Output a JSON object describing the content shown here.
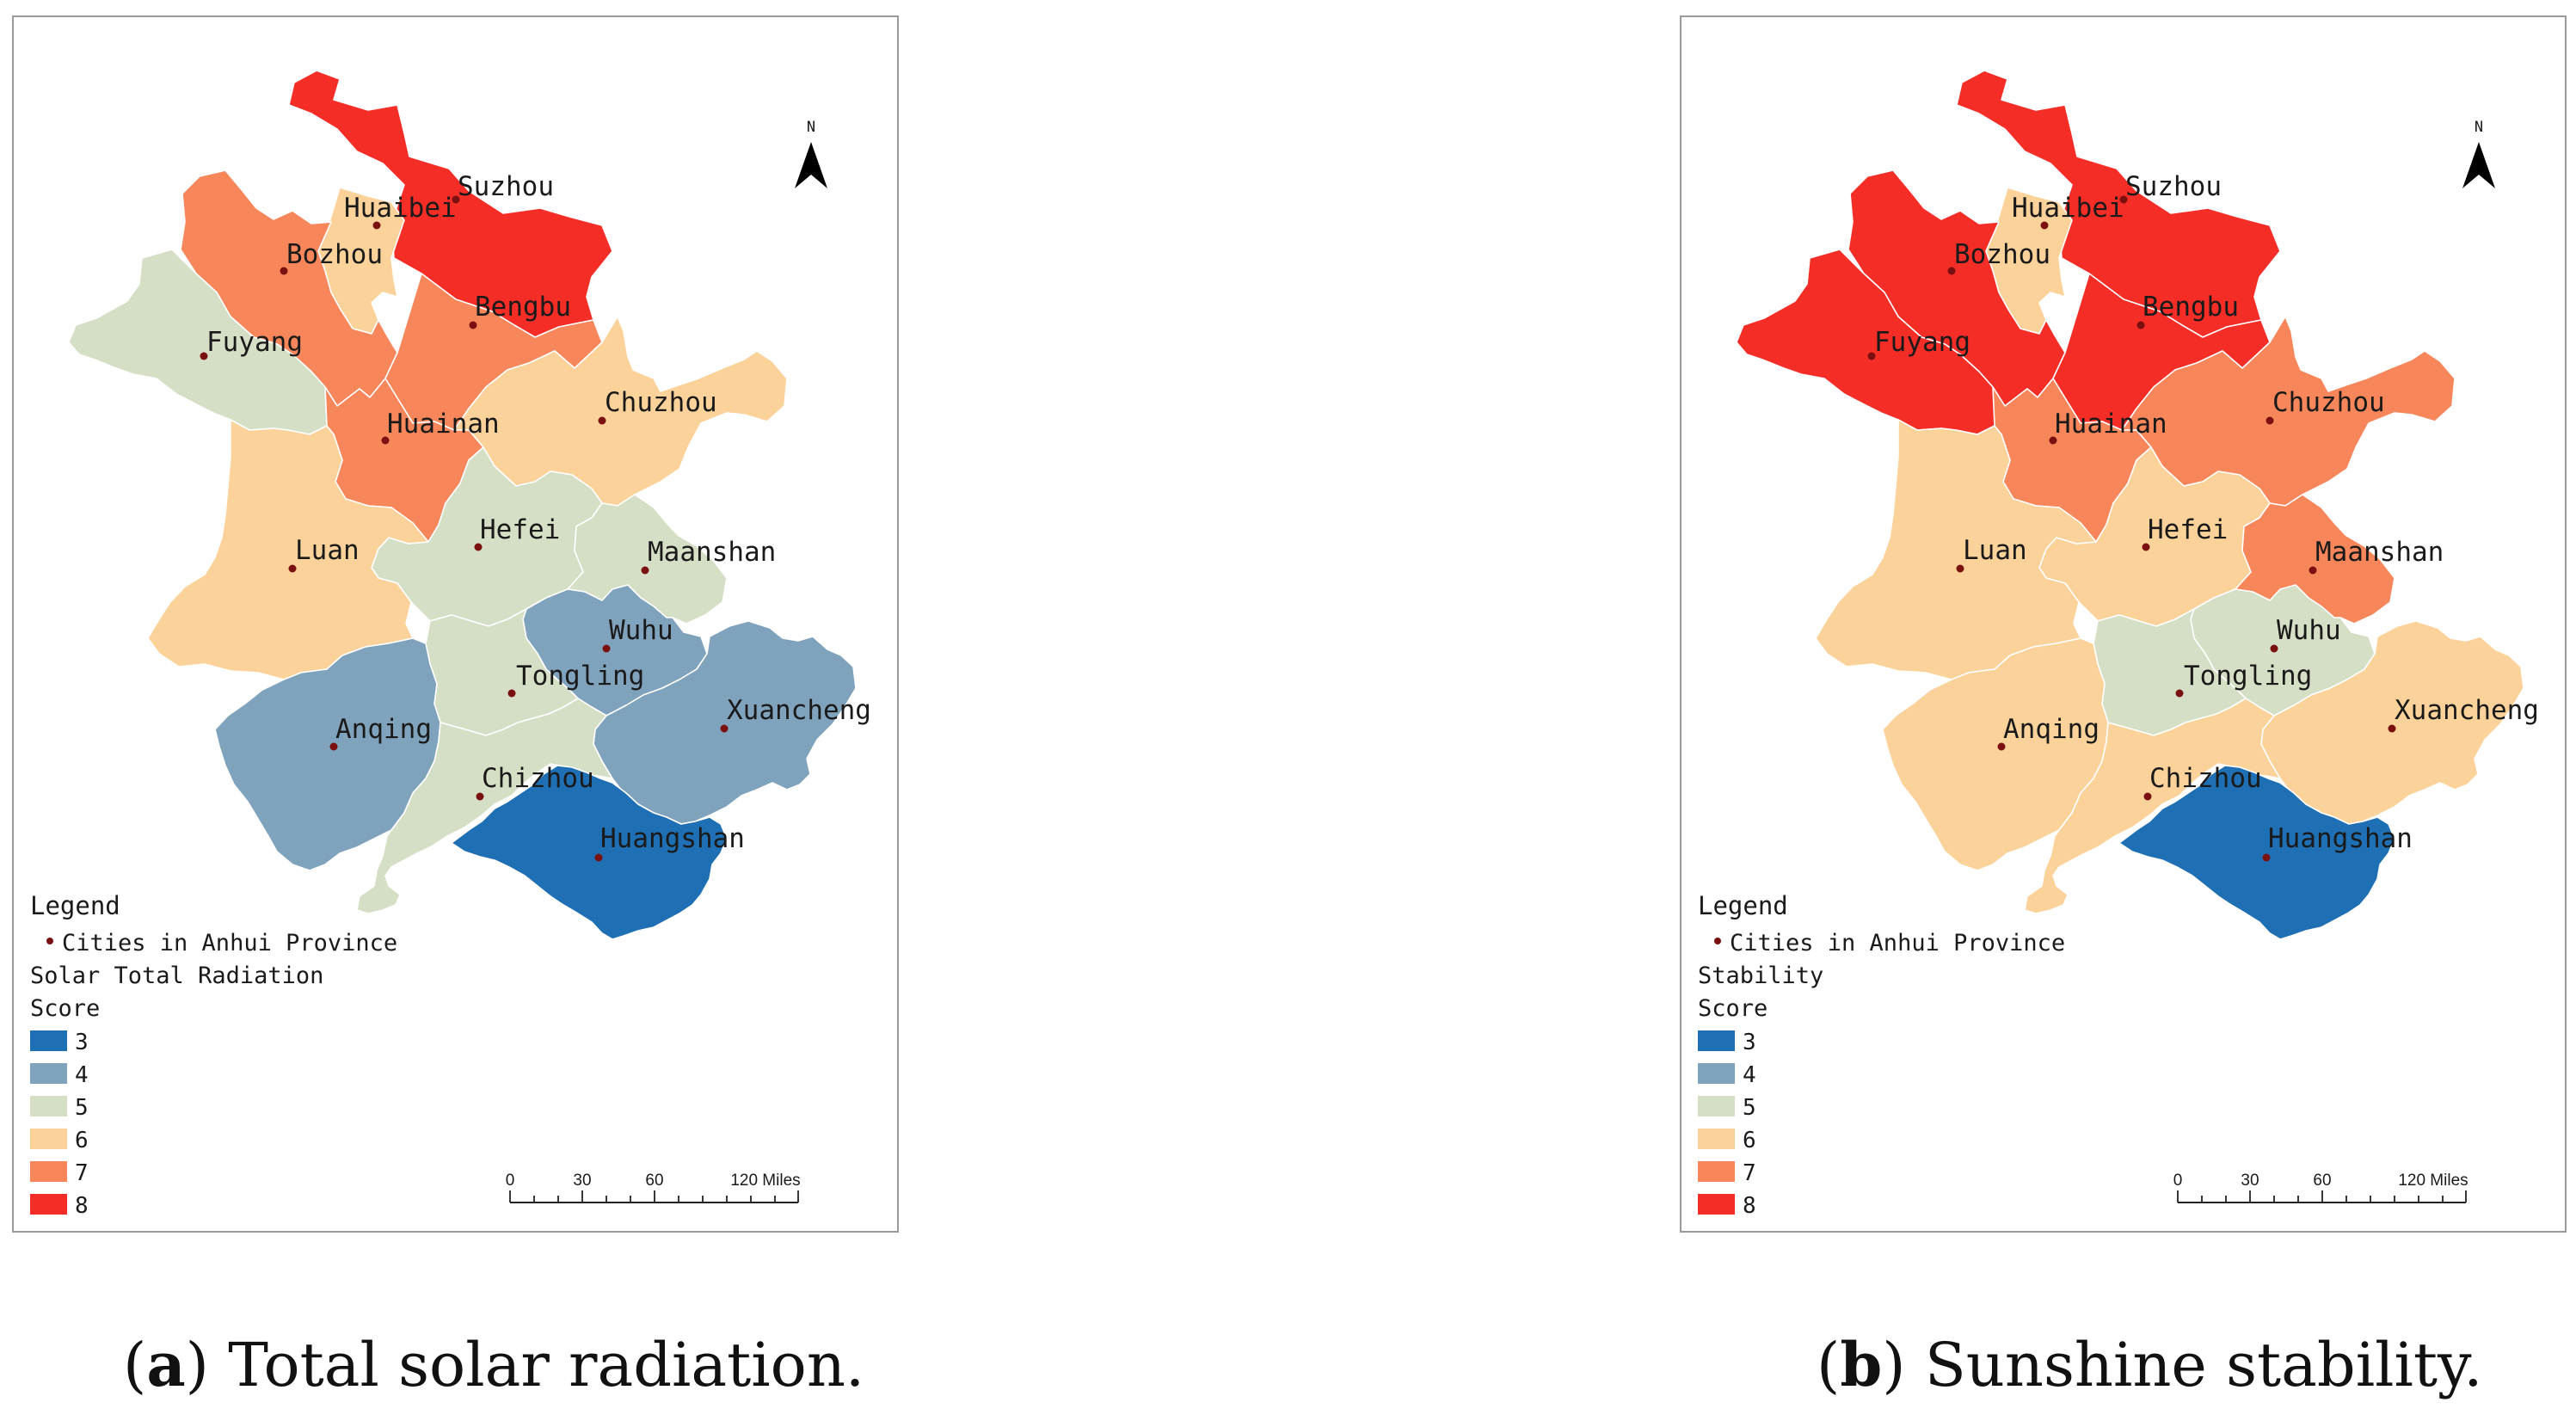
{
  "colors": {
    "3": "#1f6fb4",
    "4": "#7fa2bd",
    "5": "#d5dfc5",
    "6": "#fbd29a",
    "7": "#f7865a",
    "8": "#f42d27",
    "city_dot": "#7a1010",
    "frame": "#9a9a9a"
  },
  "cities": [
    "Suzhou",
    "Huaibei",
    "Bozhou",
    "Bengbu",
    "Fuyang",
    "Chuzhou",
    "Huainan",
    "Hefei",
    "Luan",
    "Maanshan",
    "Wuhu",
    "Tongling",
    "Xuancheng",
    "Anqing",
    "Chizhou",
    "Huangshan"
  ],
  "maps": [
    {
      "legend_title": "Legend",
      "point_label": "Cities in Anhui Province",
      "layer_name": "Solar Total Radiation",
      "field_name": "Score",
      "classes": [
        "3",
        "4",
        "5",
        "6",
        "7",
        "8"
      ],
      "north_label": "N",
      "scale_ticks": [
        "0",
        "30",
        "60",
        "120 Miles"
      ],
      "caption_letter": "a",
      "caption_text": "Total solar radiation.",
      "scores": {
        "Suzhou": 8,
        "Huaibei": 6,
        "Bozhou": 7,
        "Bengbu": 7,
        "Fuyang": 5,
        "Chuzhou": 6,
        "Huainan": 7,
        "Hefei": 5,
        "Luan": 6,
        "Maanshan": 5,
        "Wuhu": 4,
        "Tongling": 5,
        "Xuancheng": 4,
        "Anqing": 4,
        "Chizhou": 5,
        "Huangshan": 3
      }
    },
    {
      "legend_title": "Legend",
      "point_label": "Cities in Anhui Province",
      "layer_name": "Stability",
      "field_name": "Score",
      "classes": [
        "3",
        "4",
        "5",
        "6",
        "7",
        "8"
      ],
      "north_label": "N",
      "scale_ticks": [
        "0",
        "30",
        "60",
        "120 Miles"
      ],
      "caption_letter": "b",
      "caption_text": "Sunshine stability.",
      "scores": {
        "Suzhou": 8,
        "Huaibei": 6,
        "Bozhou": 8,
        "Bengbu": 8,
        "Fuyang": 8,
        "Chuzhou": 7,
        "Huainan": 7,
        "Hefei": 6,
        "Luan": 6,
        "Maanshan": 7,
        "Wuhu": 5,
        "Tongling": 5,
        "Xuancheng": 6,
        "Anqing": 6,
        "Chizhou": 6,
        "Huangshan": 3
      }
    }
  ]
}
